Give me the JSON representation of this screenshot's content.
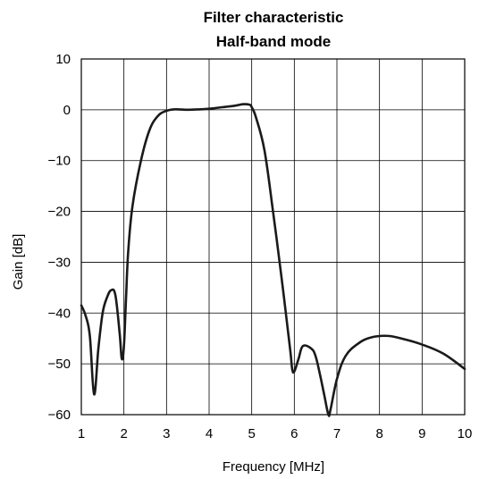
{
  "chart_data": {
    "type": "line",
    "title": "Filter characteristic",
    "subtitle": "Half-band mode",
    "xlabel": "Frequency [MHz]",
    "ylabel": "Gain [dB]",
    "xlim": [
      1,
      10
    ],
    "ylim": [
      -60,
      10
    ],
    "x_ticks": [
      1,
      2,
      3,
      4,
      5,
      6,
      7,
      8,
      9,
      10
    ],
    "y_ticks": [
      10,
      0,
      -10,
      -20,
      -30,
      -40,
      -50,
      -60
    ],
    "x_tick_labels": [
      "1",
      "2",
      "3",
      "4",
      "5",
      "6",
      "7",
      "8",
      "9",
      "10"
    ],
    "y_tick_labels": [
      "10",
      "0",
      "−10",
      "−20",
      "−30",
      "−40",
      "−50",
      "−60"
    ],
    "grid": true,
    "line_color": "#1a1a1a",
    "series": [
      {
        "x": [
          1.0,
          1.1,
          1.2,
          1.3,
          1.4,
          1.5,
          1.6,
          1.7,
          1.8,
          1.9,
          1.95,
          2.0,
          2.05,
          2.1,
          2.2,
          2.4,
          2.6,
          2.8,
          3.0,
          3.2,
          3.5,
          3.8,
          4.0,
          4.3,
          4.6,
          4.8,
          4.95,
          5.0,
          5.1,
          5.3,
          5.5,
          5.7,
          5.9,
          5.95,
          6.0,
          6.1,
          6.2,
          6.4,
          6.5,
          6.6,
          6.7,
          6.8,
          6.85,
          7.0,
          7.2,
          7.5,
          7.8,
          8.2,
          8.6,
          9.0,
          9.5,
          10.0
        ],
        "y": [
          -38.5,
          -40.5,
          -44.5,
          -56.0,
          -47.0,
          -40.0,
          -37.0,
          -35.5,
          -36.5,
          -44.0,
          -49.0,
          -46.5,
          -37.0,
          -28.0,
          -19.0,
          -10.0,
          -4.0,
          -1.2,
          -0.2,
          0.1,
          0.0,
          0.1,
          0.2,
          0.5,
          0.8,
          1.1,
          1.0,
          0.5,
          -1.5,
          -8.0,
          -20.0,
          -33.0,
          -47.0,
          -51.0,
          -51.5,
          -49.0,
          -46.5,
          -47.0,
          -48.5,
          -52.0,
          -56.0,
          -60.0,
          -59.0,
          -53.0,
          -48.5,
          -46.0,
          -44.8,
          -44.5,
          -45.2,
          -46.2,
          -48.0,
          -51.0
        ]
      }
    ]
  }
}
